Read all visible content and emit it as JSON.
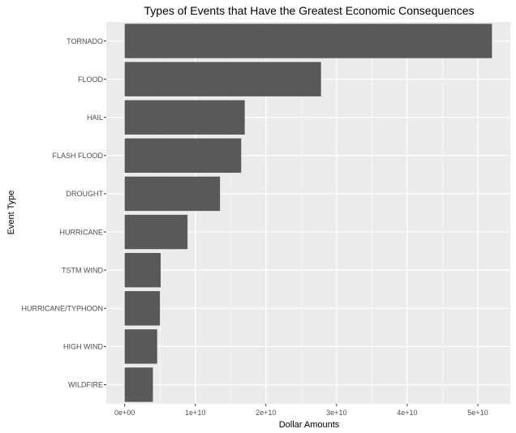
{
  "chart_data": {
    "type": "bar",
    "orientation": "horizontal",
    "title": "Types of Events that Have the Greatest Economic Consequences",
    "xlabel": "Dollar Amounts",
    "ylabel": "Event Type",
    "categories": [
      "TORNADO",
      "FLOOD",
      "HAIL",
      "FLASH FLOOD",
      "DROUGHT",
      "HURRICANE",
      "TSTM WIND",
      "HURRICANE/TYPHOON",
      "HIGH WIND",
      "WILDFIRE"
    ],
    "values": [
      52000000000,
      27800000000,
      17000000000,
      16500000000,
      13500000000,
      8900000000,
      5100000000,
      5000000000,
      4600000000,
      4000000000
    ],
    "xlim": [
      -2600000000,
      54600000000
    ],
    "xticks": [
      0,
      10000000000,
      20000000000,
      30000000000,
      40000000000,
      50000000000
    ],
    "xtick_labels": [
      "0e+00",
      "1e+10",
      "2e+10",
      "3e+10",
      "4e+10",
      "5e+10"
    ],
    "grid": true,
    "colors": {
      "panel_background": "#ebebeb",
      "grid": "#ffffff",
      "bar": "#595959",
      "tick_text": "#4d4d4d",
      "tick_mark": "#333333"
    }
  }
}
